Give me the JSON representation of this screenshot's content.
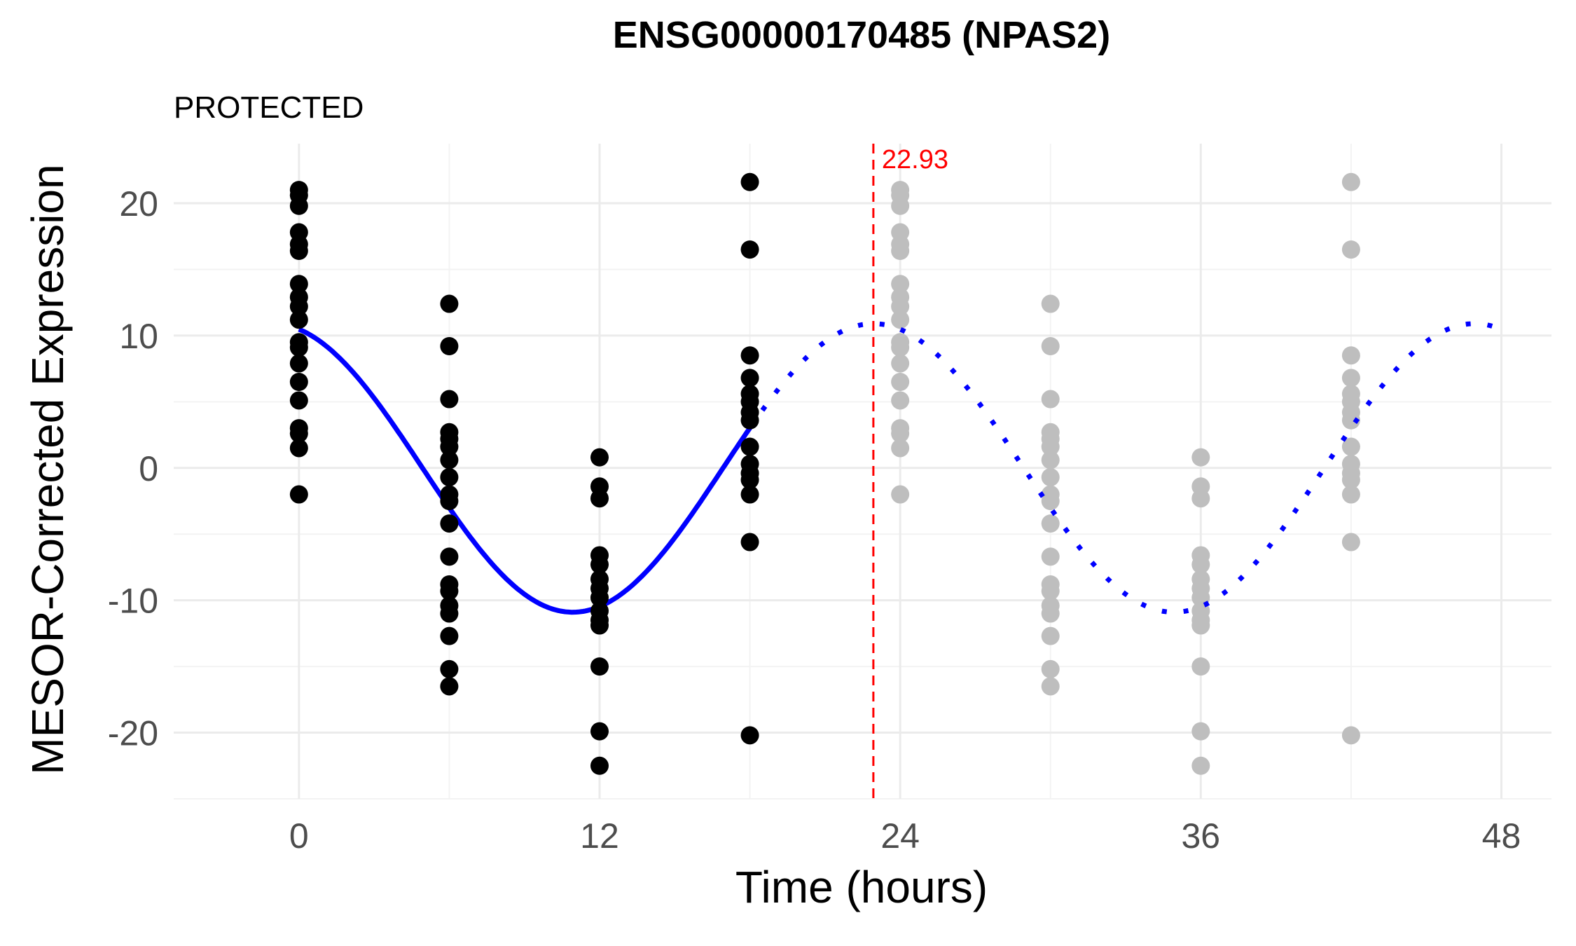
{
  "chart_data": {
    "type": "scatter",
    "title": "ENSG00000170485 (NPAS2)",
    "subtitle": "PROTECTED",
    "xlabel": "Time (hours)",
    "ylabel": "MESOR-Corrected Expression",
    "xlim": [
      -5,
      50
    ],
    "ylim": [
      -25,
      24.5
    ],
    "x_ticks": [
      0,
      12,
      24,
      36,
      48
    ],
    "y_ticks": [
      -20,
      -10,
      0,
      10,
      20
    ],
    "x_tick_labels": [
      "0",
      "12",
      "24",
      "36",
      "48"
    ],
    "y_tick_labels": [
      "-20",
      "-10",
      "0",
      "10",
      "20"
    ],
    "grid": true,
    "colors": {
      "observed_points": "#000000",
      "replicated_points": "#bebebe",
      "fit_line": "#0000ff",
      "vline": "#ff0000",
      "grid_major": "#ebebeb",
      "grid_minor": "#f3f3f3"
    },
    "series": [
      {
        "role": "observed",
        "points": [
          {
            "x": 0,
            "y": [
              21,
              20.6,
              19.8,
              17.8,
              16.9,
              16.4,
              13.9,
              12.9,
              12.2,
              11.2,
              9.5,
              9.1,
              7.9,
              6.5,
              5.1,
              3.0,
              2.6,
              1.5,
              -2.0
            ]
          },
          {
            "x": 6,
            "y": [
              12.4,
              9.2,
              5.2,
              2.7,
              2.2,
              1.6,
              0.6,
              -0.7,
              -2.0,
              -2.5,
              -4.2,
              -6.7,
              -8.8,
              -9.3,
              -10.4,
              -11.0,
              -12.7,
              -15.2,
              -16.5
            ]
          },
          {
            "x": 12,
            "y": [
              0.8,
              -1.4,
              -2.3,
              -6.6,
              -7.3,
              -8.4,
              -9.1,
              -9.8,
              -10.8,
              -11.5,
              -11.9,
              -15.0,
              -19.9,
              -22.5
            ]
          },
          {
            "x": 18,
            "y": [
              21.6,
              16.5,
              8.5,
              6.8,
              5.6,
              5.0,
              4.2,
              3.6,
              1.6,
              0.3,
              -0.4,
              -0.9,
              -2.0,
              -5.6,
              -20.2
            ]
          }
        ]
      },
      {
        "role": "replicated",
        "points": [
          {
            "x": 24,
            "y": [
              21,
              20.6,
              19.8,
              17.8,
              16.9,
              16.4,
              13.9,
              12.9,
              12.2,
              11.2,
              9.5,
              9.1,
              7.9,
              6.5,
              5.1,
              3.0,
              2.6,
              1.5,
              -2.0
            ]
          },
          {
            "x": 30,
            "y": [
              12.4,
              9.2,
              5.2,
              2.7,
              2.2,
              1.6,
              0.6,
              -0.7,
              -2.0,
              -2.5,
              -4.2,
              -6.7,
              -8.8,
              -9.3,
              -10.4,
              -11.0,
              -12.7,
              -15.2,
              -16.5
            ]
          },
          {
            "x": 36,
            "y": [
              0.8,
              -1.4,
              -2.3,
              -6.6,
              -7.3,
              -8.4,
              -9.1,
              -9.8,
              -10.8,
              -11.5,
              -11.9,
              -15.0,
              -19.9,
              -22.5
            ]
          },
          {
            "x": 42,
            "y": [
              21.6,
              16.5,
              8.5,
              6.8,
              5.6,
              5.0,
              4.2,
              3.6,
              1.6,
              0.3,
              -0.4,
              -0.9,
              -2.0,
              -5.6,
              -20.2
            ]
          }
        ]
      }
    ],
    "fit": {
      "amplitude": 10.9,
      "acrophase": 22.93,
      "period": 24,
      "solid_range": [
        0,
        18
      ],
      "dotted_range": [
        18,
        48
      ]
    },
    "vline": {
      "x": 22.93,
      "label": "22.93"
    }
  }
}
